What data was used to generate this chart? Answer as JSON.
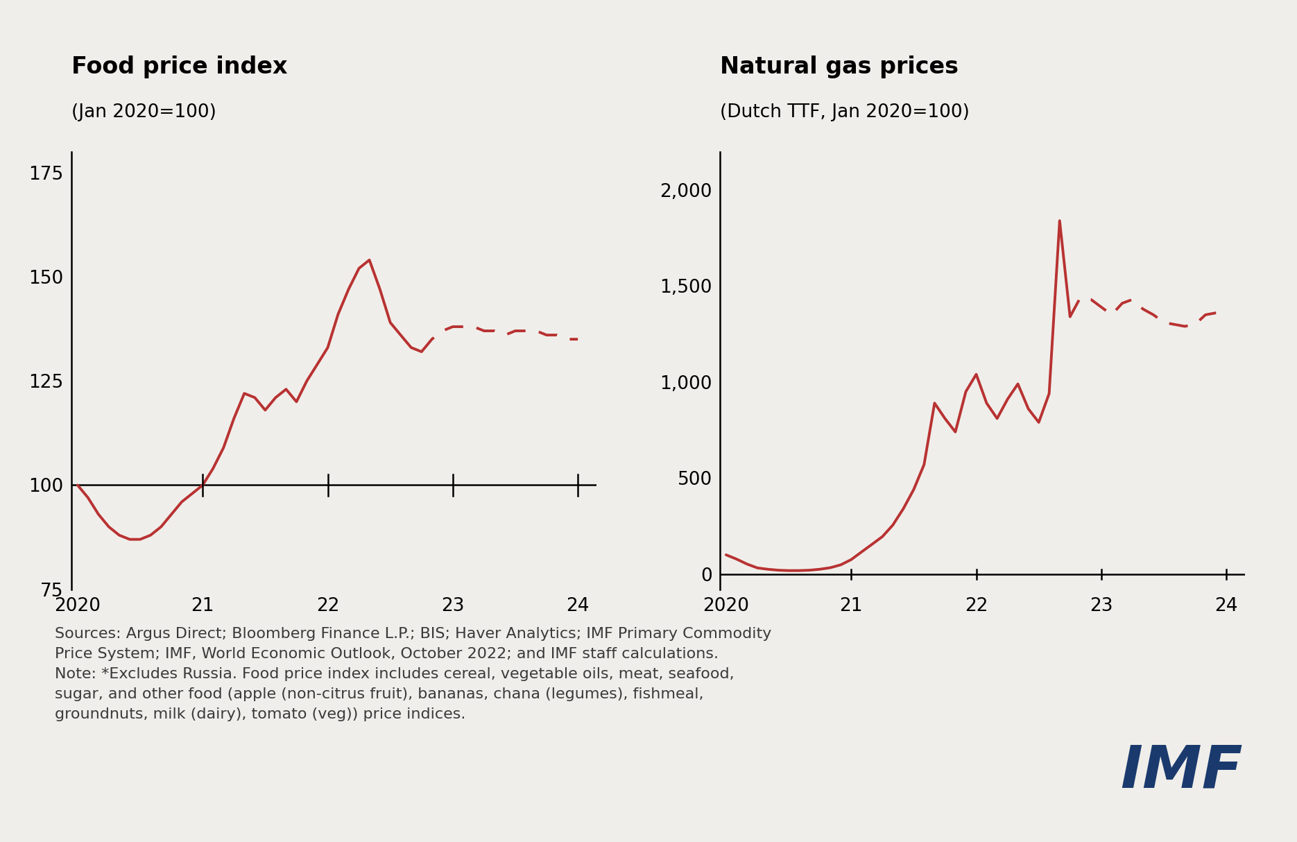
{
  "food_title": "Food price index",
  "food_subtitle": "(Jan 2020=100)",
  "gas_title": "Natural gas prices",
  "gas_subtitle": "(Dutch TTF, Jan 2020=100)",
  "line_color": "#b83232",
  "bg_color": "#f0eeea",
  "text_color": "#222222",
  "food_solid_x": [
    2020.0,
    2020.083,
    2020.167,
    2020.25,
    2020.333,
    2020.417,
    2020.5,
    2020.583,
    2020.667,
    2020.75,
    2020.833,
    2020.917,
    2021.0,
    2021.083,
    2021.167,
    2021.25,
    2021.333,
    2021.417,
    2021.5,
    2021.583,
    2021.667,
    2021.75,
    2021.833,
    2021.917,
    2022.0,
    2022.083,
    2022.167,
    2022.25,
    2022.333,
    2022.417,
    2022.5,
    2022.583,
    2022.667,
    2022.75
  ],
  "food_solid_y": [
    100,
    97,
    93,
    90,
    88,
    87,
    87,
    88,
    90,
    93,
    96,
    98,
    100,
    104,
    109,
    116,
    122,
    121,
    118,
    121,
    123,
    120,
    125,
    129,
    133,
    141,
    147,
    152,
    154,
    147,
    139,
    136,
    133,
    132
  ],
  "food_dashed_x": [
    2022.75,
    2022.833,
    2022.917,
    2023.0,
    2023.083,
    2023.167,
    2023.25,
    2023.333,
    2023.417,
    2023.5,
    2023.583,
    2023.667,
    2023.75,
    2023.833,
    2023.917,
    2024.0
  ],
  "food_dashed_y": [
    132,
    135,
    137,
    138,
    138,
    138,
    137,
    137,
    136,
    137,
    137,
    137,
    136,
    136,
    135,
    135
  ],
  "food_ylim": [
    75,
    180
  ],
  "food_yticks": [
    75,
    100,
    125,
    150,
    175
  ],
  "food_xlim": [
    2019.95,
    2024.15
  ],
  "food_xticks": [
    2020,
    2021,
    2022,
    2023,
    2024
  ],
  "food_xticklabels": [
    "2020",
    "21",
    "22",
    "23",
    "24"
  ],
  "gas_solid_x": [
    2020.0,
    2020.083,
    2020.167,
    2020.25,
    2020.333,
    2020.417,
    2020.5,
    2020.583,
    2020.667,
    2020.75,
    2020.833,
    2020.917,
    2021.0,
    2021.083,
    2021.167,
    2021.25,
    2021.333,
    2021.417,
    2021.5,
    2021.583,
    2021.667,
    2021.75,
    2021.833,
    2021.917,
    2022.0,
    2022.083,
    2022.167,
    2022.25,
    2022.333,
    2022.417,
    2022.5,
    2022.583,
    2022.667,
    2022.75
  ],
  "gas_solid_y": [
    100,
    78,
    52,
    32,
    25,
    20,
    18,
    18,
    20,
    25,
    33,
    48,
    75,
    115,
    155,
    195,
    255,
    340,
    440,
    570,
    890,
    810,
    740,
    950,
    1040,
    890,
    810,
    910,
    990,
    860,
    790,
    940,
    1840,
    1340
  ],
  "gas_dashed_x": [
    2022.75,
    2022.833,
    2022.917,
    2023.0,
    2023.083,
    2023.167,
    2023.25,
    2023.333,
    2023.417,
    2023.5,
    2023.583,
    2023.667,
    2023.75,
    2023.833,
    2023.917,
    2024.0
  ],
  "gas_dashed_y": [
    1340,
    1440,
    1430,
    1390,
    1350,
    1410,
    1430,
    1380,
    1350,
    1310,
    1300,
    1290,
    1300,
    1350,
    1360,
    1360
  ],
  "gas_ylim": [
    -80,
    2200
  ],
  "gas_yticks": [
    0,
    500,
    1000,
    1500,
    2000
  ],
  "gas_yticklabels": [
    "0",
    "500",
    "1,000",
    "1,500",
    "2,000"
  ],
  "gas_xlim": [
    2019.95,
    2024.15
  ],
  "gas_xticks": [
    2020,
    2021,
    2022,
    2023,
    2024
  ],
  "gas_xticklabels": [
    "2020",
    "21",
    "22",
    "23",
    "24"
  ],
  "source_text": "Sources: Argus Direct; Bloomberg Finance L.P.; BIS; Haver Analytics; IMF Primary Commodity\nPrice System; IMF, World Economic Outlook, October 2022; and IMF staff calculations.\nNote: *Excludes Russia. Food price index includes cereal, vegetable oils, meat, seafood,\nsugar, and other food (apple (non-citrus fruit), bananas, chana (legumes), fishmeal,\ngroundnuts, milk (dairy), tomato (veg)) price indices.",
  "imf_color": "#1a3a6e",
  "hline_y_food": 100,
  "hline_y_gas": 0,
  "title_fontsize": 24,
  "subtitle_fontsize": 19,
  "tick_fontsize": 19,
  "source_fontsize": 16
}
